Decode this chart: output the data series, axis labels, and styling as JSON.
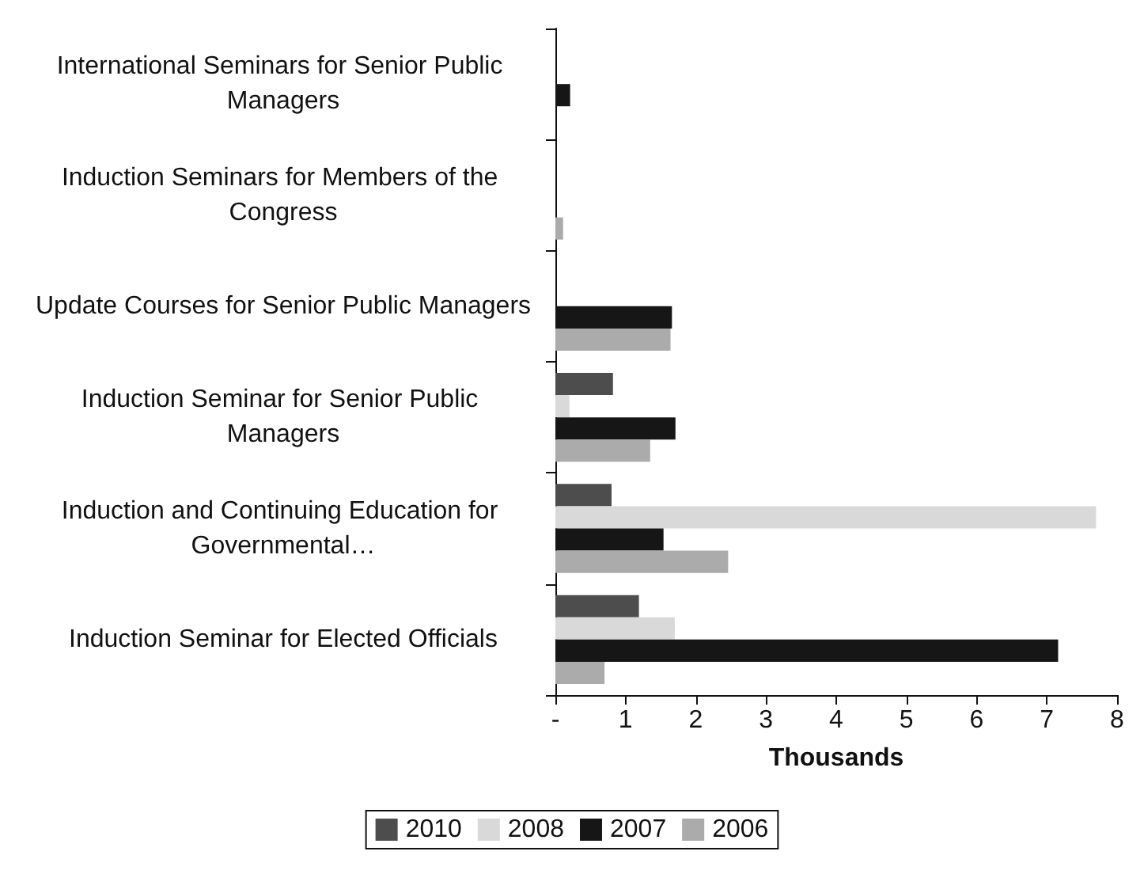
{
  "chart_data": {
    "type": "bar",
    "orientation": "horizontal",
    "xlabel": "Thousands",
    "categories": [
      "International Seminars for Senior Public Managers",
      "Induction Seminars for Members of the Congress",
      "Update Courses for Senior Public Managers",
      "Induction Seminar for Senior Public Managers",
      "Induction and Continuing Education for Governmental…",
      "Induction Seminar for Elected Officials"
    ],
    "series": [
      {
        "name": "2010",
        "color": "#4d4d4d",
        "values": [
          null,
          null,
          null,
          0.82,
          0.8,
          1.19
        ]
      },
      {
        "name": "2008",
        "color": "#d9d9d9",
        "values": [
          null,
          null,
          null,
          0.2,
          7.7,
          1.7
        ]
      },
      {
        "name": "2007",
        "color": "#161616",
        "values": [
          0.21,
          null,
          1.66,
          1.71,
          1.54,
          7.16
        ]
      },
      {
        "name": "2006",
        "color": "#ababab",
        "values": [
          null,
          0.11,
          1.64,
          1.35,
          2.46,
          0.7
        ]
      }
    ],
    "xlim": [
      0,
      8
    ],
    "xticks": [
      {
        "value": 0,
        "label": "-"
      },
      1,
      2,
      3,
      4,
      5,
      6,
      7,
      8
    ],
    "grid": false,
    "legend": "bottom"
  }
}
